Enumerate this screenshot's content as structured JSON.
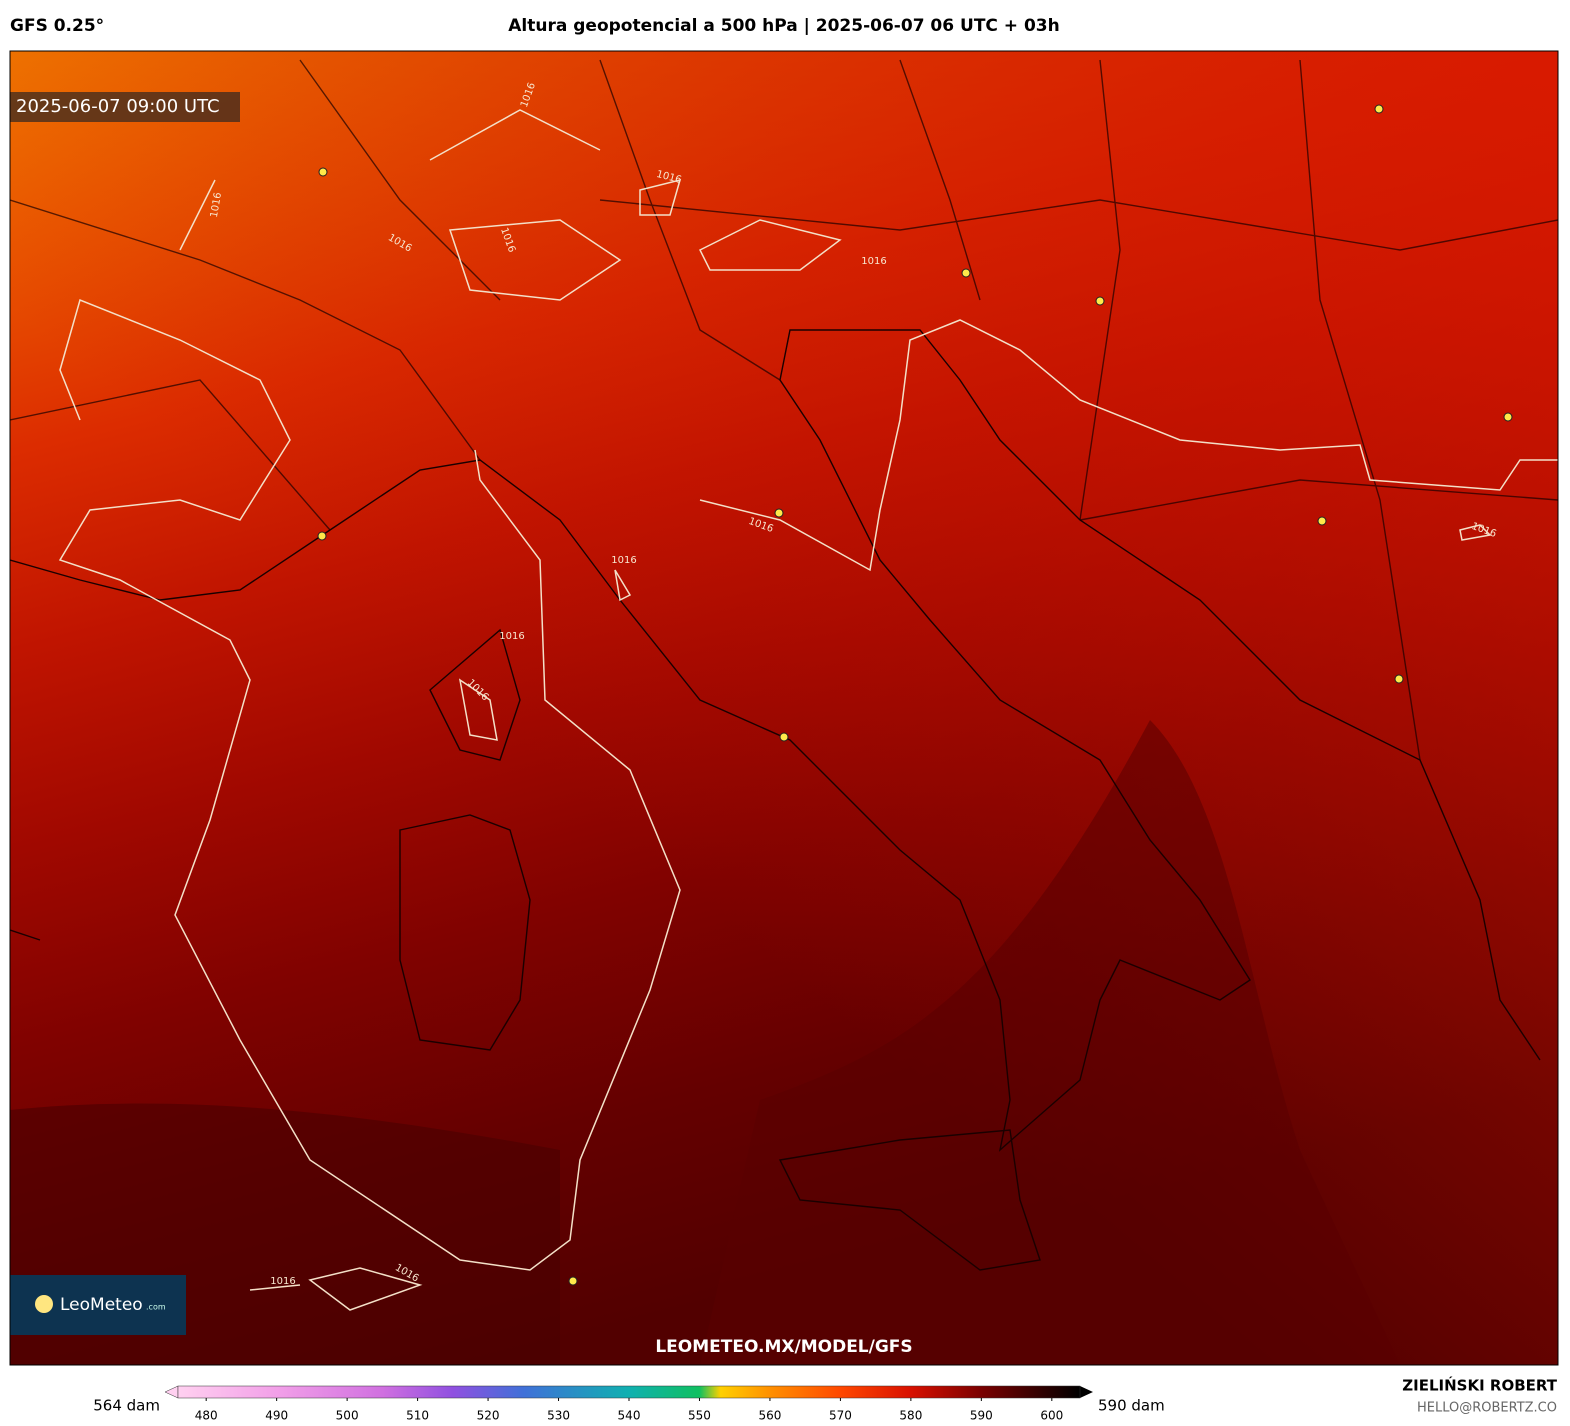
{
  "header": {
    "model": "GFS 0.25°",
    "title": "Altura geopotencial a 500 hPa | 2025-06-07 06 UTC + 03h"
  },
  "map": {
    "valid_time": "2025-06-07 09:00 UTC",
    "isobar_labels": [
      "1016",
      "1016",
      "1016",
      "1016",
      "1016",
      "1016",
      "1016",
      "1016",
      "1016",
      "1016",
      "1016",
      "1016",
      "1016"
    ],
    "watermark": "LEOMETEO.MX/MODEL/GFS",
    "logo": {
      "name": "LeoMeteo",
      "suffix": ".com"
    }
  },
  "colorbar": {
    "min_label": "564 dam",
    "max_label": "590 dam",
    "lim": [
      476,
      604
    ],
    "ticks": [
      480,
      490,
      500,
      510,
      520,
      530,
      540,
      550,
      560,
      570,
      580,
      590,
      600
    ],
    "stops": [
      476,
      490,
      505,
      515,
      525,
      540,
      550,
      553,
      560,
      570,
      580,
      590,
      604
    ],
    "colors": [
      "#ffd0f0",
      "#f2a0e8",
      "#d070e0",
      "#9050e0",
      "#4070d8",
      "#10b0b0",
      "#10c060",
      "#ffd000",
      "#ff9000",
      "#ff4800",
      "#d81000",
      "#7a0000",
      "#000000"
    ]
  },
  "credit": {
    "author": "ZIELIŃSKI ROBERT",
    "email": "HELLO@ROBERTZ.CO"
  }
}
